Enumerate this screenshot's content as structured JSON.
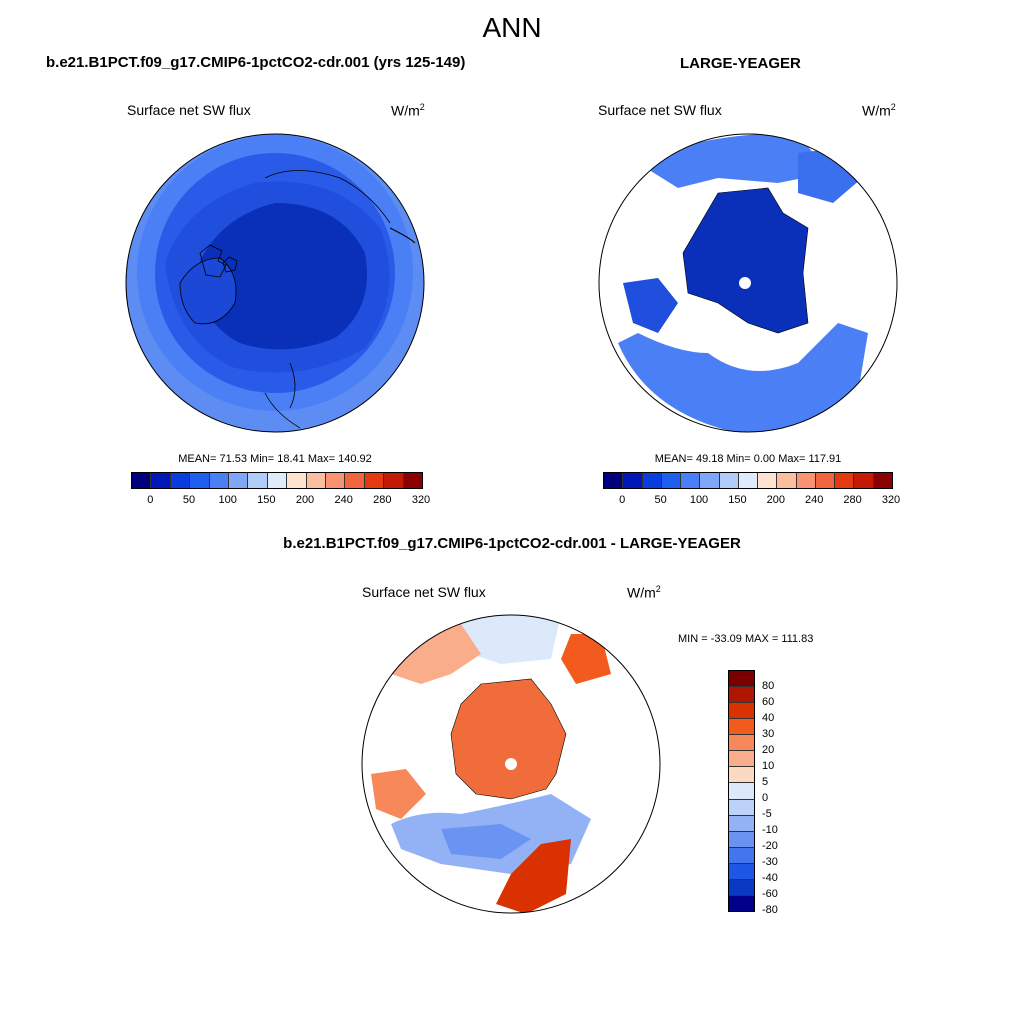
{
  "figure": {
    "title": "ANN",
    "left_case": "b.e21.B1PCT.f09_g17.CMIP6-1pctCO2-cdr.001 (yrs 125-149)",
    "right_case": "LARGE-YEAGER",
    "diff_case": "b.e21.B1PCT.f09_g17.CMIP6-1pctCO2-cdr.001 - LARGE-YEAGER"
  },
  "chart_data": [
    {
      "type": "heatmap",
      "projection": "north polar stereographic",
      "label": "Surface net SW flux",
      "units": "W/m",
      "units_sup": "2",
      "stats": "MEAN=  71.53  Min=  18.41  Max= 140.92",
      "mean": 71.53,
      "min": 18.41,
      "max": 140.92,
      "colorbar_ticks": [
        "0",
        "50",
        "100",
        "150",
        "200",
        "240",
        "280",
        "320"
      ]
    },
    {
      "type": "heatmap",
      "projection": "north polar stereographic",
      "label": "Surface net SW flux",
      "units": "W/m",
      "units_sup": "2",
      "stats": "MEAN=  49.18  Min=   0.00  Max= 117.91",
      "mean": 49.18,
      "min": 0.0,
      "max": 117.91,
      "colorbar_ticks": [
        "0",
        "50",
        "100",
        "150",
        "200",
        "240",
        "280",
        "320"
      ]
    },
    {
      "type": "heatmap",
      "projection": "north polar stereographic",
      "label": "Surface net SW flux",
      "units": "W/m",
      "units_sup": "2",
      "stats": "MIN = -33.09 MAX = 111.83",
      "min": -33.09,
      "max": 111.83,
      "colorbar_ticks": [
        "80",
        "60",
        "40",
        "30",
        "20",
        "10",
        "5",
        "0",
        "-5",
        "-10",
        "-20",
        "-30",
        "-40",
        "-60",
        "-80"
      ]
    }
  ],
  "colors": {
    "abs_scale": [
      "#00007f",
      "#0018b8",
      "#0a3de0",
      "#1f5ff0",
      "#4a7ff5",
      "#7fa6f7",
      "#b2ccfa",
      "#dfeafb",
      "#fde3cf",
      "#fbbf9f",
      "#f99473",
      "#f2663f",
      "#e33a12",
      "#c41b05",
      "#8b0000"
    ],
    "diff_scale": [
      "#7a0000",
      "#b01500",
      "#d93100",
      "#f25a1e",
      "#f7885a",
      "#f9ad8a",
      "#fcd9c3",
      "#dce9fa",
      "#bcd2f8",
      "#93b2f5",
      "#6a93f2",
      "#4275ee",
      "#1e57e6",
      "#0a3ac4",
      "#00008a"
    ],
    "land": "#ffffff",
    "deep_blue": "#0a2fb8",
    "mid_blue": "#2a5ae8",
    "light_blue": "#5d8df2",
    "orange": "#f06c3a"
  }
}
